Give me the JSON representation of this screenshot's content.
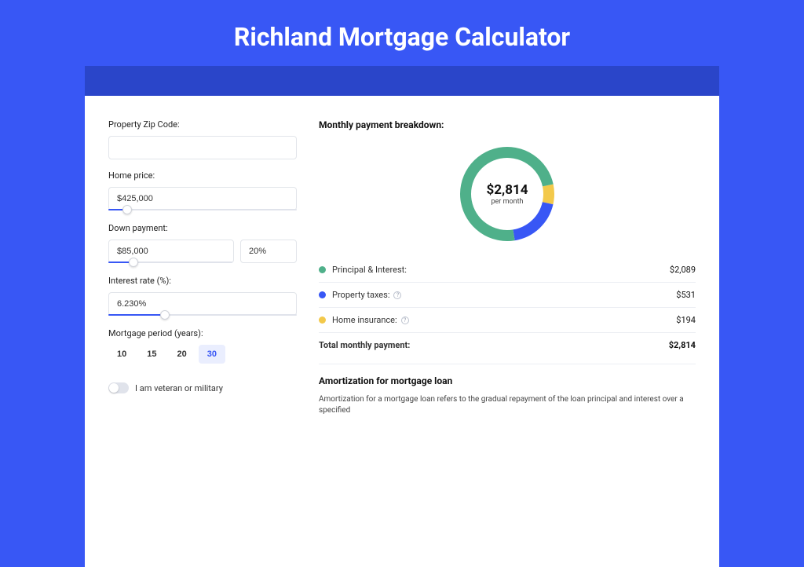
{
  "page": {
    "title": "Richland Mortgage Calculator"
  },
  "form": {
    "zip": {
      "label": "Property Zip Code:",
      "value": ""
    },
    "home_price": {
      "label": "Home price:",
      "value": "$425,000",
      "slider_pct": 10
    },
    "down_payment": {
      "label": "Down payment:",
      "amount": "$85,000",
      "percent": "20%",
      "slider_pct": 20
    },
    "interest_rate": {
      "label": "Interest rate (%):",
      "value": "6.230%",
      "slider_pct": 30
    },
    "period": {
      "label": "Mortgage period (years):",
      "options": [
        "10",
        "15",
        "20",
        "30"
      ],
      "selected_index": 3
    },
    "veteran": {
      "label": "I am veteran or military",
      "on": false
    }
  },
  "breakdown": {
    "title": "Monthly payment breakdown:",
    "center_amount": "$2,814",
    "center_sub": "per month",
    "items": [
      {
        "label": "Principal & Interest:",
        "value": "$2,089",
        "color": "#4fb08a",
        "info": false,
        "amount": 2089
      },
      {
        "label": "Property taxes:",
        "value": "$531",
        "color": "#3857f5",
        "info": true,
        "amount": 531
      },
      {
        "label": "Home insurance:",
        "value": "$194",
        "color": "#f3c94b",
        "info": true,
        "amount": 194
      }
    ],
    "total": {
      "label": "Total monthly payment:",
      "value": "$2,814"
    },
    "donut": {
      "stroke_width": 14,
      "bg_color": "#eceef3",
      "start_angle_deg": -12
    }
  },
  "amortization": {
    "title": "Amortization for mortgage loan",
    "body": "Amortization for a mortgage loan refers to the gradual repayment of the loan principal and interest over a specified"
  },
  "colors": {
    "page_bg": "#3857f5",
    "darkbar_bg": "#2a45c9",
    "card_bg": "#ffffff"
  }
}
